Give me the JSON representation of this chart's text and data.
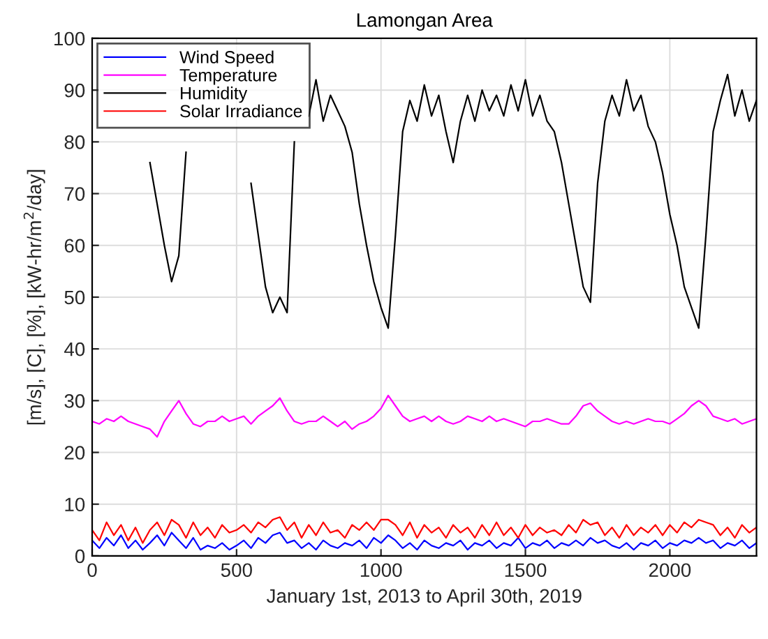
{
  "chart_data": {
    "type": "line",
    "title": "Lamongan Area",
    "xlabel": "January 1st, 2013 to April 30th, 2019",
    "ylabel": "[m/s], [C], [%], [kW-hr/m$^{2}$/day]",
    "x": [
      0,
      25,
      50,
      75,
      100,
      125,
      150,
      175,
      200,
      225,
      250,
      275,
      300,
      325,
      350,
      375,
      400,
      425,
      450,
      475,
      500,
      525,
      550,
      575,
      600,
      625,
      650,
      675,
      700,
      725,
      750,
      775,
      800,
      825,
      850,
      875,
      900,
      925,
      950,
      975,
      1000,
      1025,
      1050,
      1075,
      1100,
      1125,
      1150,
      1175,
      1200,
      1225,
      1250,
      1275,
      1300,
      1325,
      1350,
      1375,
      1400,
      1425,
      1450,
      1475,
      1500,
      1525,
      1550,
      1575,
      1600,
      1625,
      1650,
      1675,
      1700,
      1725,
      1750,
      1775,
      1800,
      1825,
      1850,
      1875,
      1900,
      1925,
      1950,
      1975,
      2000,
      2025,
      2050,
      2075,
      2100,
      2125,
      2150,
      2175,
      2200,
      2225,
      2250,
      2275,
      2300
    ],
    "series": [
      {
        "name": "Wind Speed",
        "color": "#0000ff",
        "values": [
          3,
          1.5,
          3.5,
          2,
          4,
          1.5,
          3,
          1.2,
          2.5,
          4,
          2,
          4.5,
          3,
          1.5,
          3.5,
          1.2,
          2,
          1.5,
          2.5,
          1.2,
          2,
          3,
          1.5,
          3.5,
          2.5,
          4,
          4.5,
          2.5,
          3,
          1.5,
          2.5,
          1.2,
          3,
          2,
          1.5,
          2.5,
          2,
          3,
          1.5,
          3.5,
          2.5,
          4,
          3,
          1.5,
          2.5,
          1.2,
          3,
          2,
          1.5,
          2.5,
          2,
          3,
          1.2,
          2.5,
          2,
          3,
          1.5,
          2.5,
          2,
          3.5,
          1.5,
          2.5,
          2,
          3,
          1.5,
          2.5,
          2,
          3,
          2,
          3.5,
          2.5,
          3,
          2,
          1.5,
          2.5,
          1.2,
          2.5,
          2,
          3,
          1.5,
          2.5,
          2,
          3,
          2.5,
          3.5,
          2.5,
          3,
          1.5,
          2.5,
          2,
          3,
          1.5,
          2.5
        ]
      },
      {
        "name": "Temperature",
        "color": "#ff00ff",
        "values": [
          26,
          25.5,
          26.5,
          26,
          27,
          26,
          25.5,
          25,
          24.5,
          23,
          26,
          28,
          30,
          27.5,
          25.5,
          25,
          26,
          26,
          27,
          26,
          26.5,
          27,
          25.5,
          27,
          28,
          29,
          30.5,
          28,
          26,
          25.5,
          26,
          26,
          27,
          26,
          25,
          26,
          24.5,
          25.5,
          26,
          27,
          28.5,
          31,
          29,
          27,
          26,
          26.5,
          27,
          26,
          27,
          26,
          25.5,
          26,
          27,
          26.5,
          26,
          27,
          26,
          26.5,
          26,
          25.5,
          25,
          26,
          26,
          26.5,
          26,
          25.5,
          25.5,
          27,
          29,
          29.5,
          28,
          27,
          26,
          25.5,
          26,
          25.5,
          26,
          26.5,
          26,
          26,
          25.5,
          26.5,
          27.5,
          29,
          30,
          29,
          27,
          26.5,
          26,
          26.5,
          25.5,
          26,
          26.5
        ]
      },
      {
        "name": "Humidity",
        "color": "#000000",
        "values": [
          null,
          null,
          null,
          null,
          null,
          null,
          null,
          null,
          76,
          68,
          60,
          53,
          58,
          78,
          null,
          null,
          null,
          null,
          null,
          null,
          null,
          null,
          72,
          62,
          52,
          47,
          50,
          47,
          80,
          null,
          85,
          92,
          84,
          89,
          86,
          83,
          78,
          68,
          60,
          53,
          48,
          44,
          62,
          82,
          88,
          84,
          91,
          85,
          89,
          82,
          76,
          84,
          89,
          84,
          90,
          86,
          89,
          85,
          91,
          86,
          92,
          85,
          89,
          84,
          82,
          76,
          68,
          60,
          52,
          49,
          72,
          84,
          89,
          85,
          92,
          86,
          89,
          83,
          80,
          74,
          66,
          60,
          52,
          48,
          44,
          62,
          82,
          88,
          93,
          85,
          90,
          84,
          88
        ]
      },
      {
        "name": "Solar Irradiance",
        "color": "#ff0000",
        "values": [
          5,
          3,
          6.5,
          4,
          6,
          3,
          5.5,
          2.5,
          5,
          6.5,
          4,
          7,
          6,
          3.5,
          6.5,
          4,
          5.5,
          3.5,
          6,
          4.5,
          5,
          6,
          4.5,
          6.5,
          5.5,
          7,
          7.5,
          5,
          6.5,
          3.5,
          6,
          4,
          6.5,
          4.5,
          5,
          3.5,
          6,
          5,
          6.5,
          5,
          7,
          7,
          6,
          4,
          6.5,
          3.5,
          6,
          4.5,
          5.5,
          3.5,
          6,
          4.5,
          5.5,
          3.5,
          6,
          4,
          6.5,
          4,
          5.5,
          3.5,
          6,
          4,
          5.5,
          4.5,
          5,
          4,
          6,
          4.5,
          7,
          6,
          6.5,
          4,
          5.5,
          3.5,
          6,
          4,
          5.5,
          4.5,
          6,
          4,
          6,
          4.5,
          6.5,
          5.5,
          7,
          6.5,
          6,
          4,
          5.5,
          3.5,
          6,
          4.5,
          5.5
        ]
      }
    ],
    "xlim": [
      0,
      2300
    ],
    "ylim": [
      0,
      100
    ],
    "xticks": [
      0,
      500,
      1000,
      1500,
      2000
    ],
    "yticks": [
      0,
      10,
      20,
      30,
      40,
      50,
      60,
      70,
      80,
      90,
      100
    ],
    "grid": true,
    "legend": "top left",
    "line_style": "solid",
    "marker": "none"
  }
}
